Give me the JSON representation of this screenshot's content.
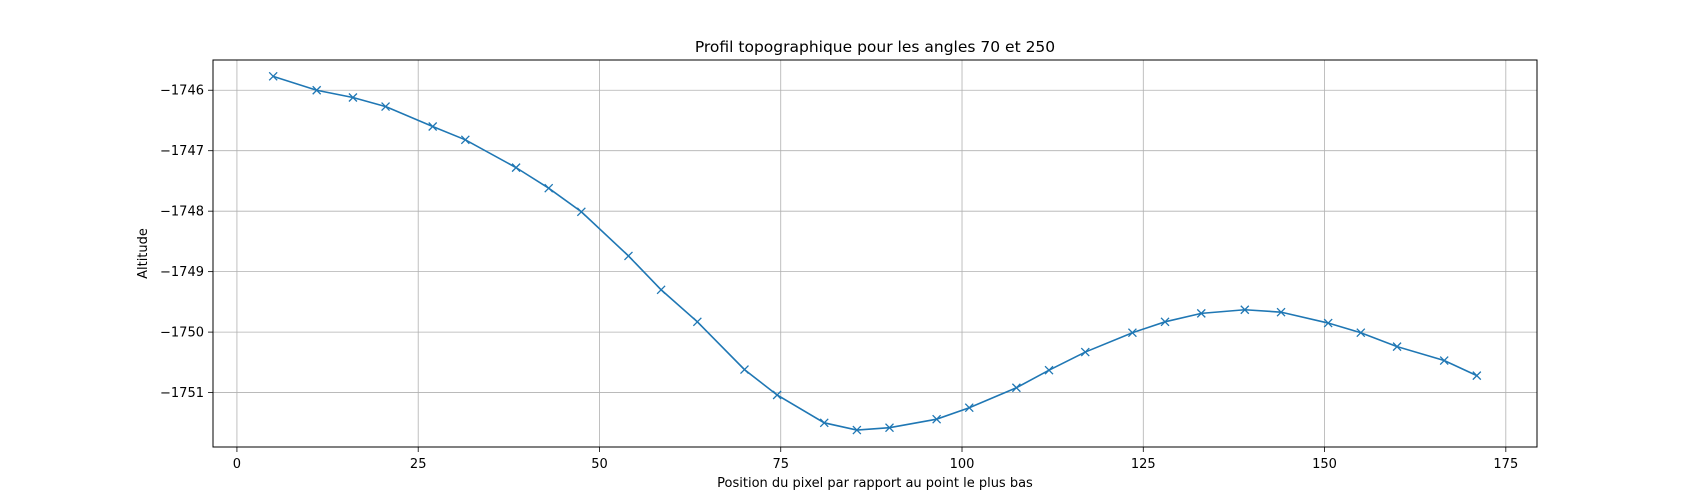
{
  "chart_data": {
    "type": "line",
    "title": "Profil topographique pour les angles 70 et 250",
    "xlabel": "Position du pixel par rapport au point le plus bas",
    "ylabel": "Altitude",
    "xlim": [
      -3.3,
      179.3
    ],
    "ylim": [
      -1751.9,
      -1745.5
    ],
    "xticks": [
      0,
      25,
      50,
      75,
      100,
      125,
      150,
      175
    ],
    "xtick_labels": [
      "0",
      "25",
      "50",
      "75",
      "100",
      "125",
      "150",
      "175"
    ],
    "yticks": [
      -1751,
      -1750,
      -1749,
      -1748,
      -1747,
      -1746
    ],
    "ytick_labels": [
      "−1751",
      "−1750",
      "−1749",
      "−1748",
      "−1747",
      "−1746"
    ],
    "grid": true,
    "marker": "x",
    "color": "#1f77b4",
    "series": [
      {
        "x": [
          5,
          11,
          16,
          20.5,
          27,
          31.5,
          38.5,
          43,
          47.5,
          54,
          58.5,
          63.5,
          70,
          74.5,
          81,
          85.5,
          90,
          96.5,
          101,
          107.5,
          112,
          117,
          123.5,
          128,
          133,
          139,
          144,
          150.5,
          155,
          160,
          166.5,
          171
        ],
        "y": [
          -1745.77,
          -1746.0,
          -1746.12,
          -1746.27,
          -1746.6,
          -1746.82,
          -1747.28,
          -1747.62,
          -1748.01,
          -1748.74,
          -1749.3,
          -1749.83,
          -1750.62,
          -1751.04,
          -1751.5,
          -1751.62,
          -1751.58,
          -1751.44,
          -1751.25,
          -1750.92,
          -1750.63,
          -1750.33,
          -1750.01,
          -1749.83,
          -1749.69,
          -1749.63,
          -1749.67,
          -1749.85,
          -1750.01,
          -1750.24,
          -1750.47,
          -1750.72
        ]
      }
    ]
  }
}
